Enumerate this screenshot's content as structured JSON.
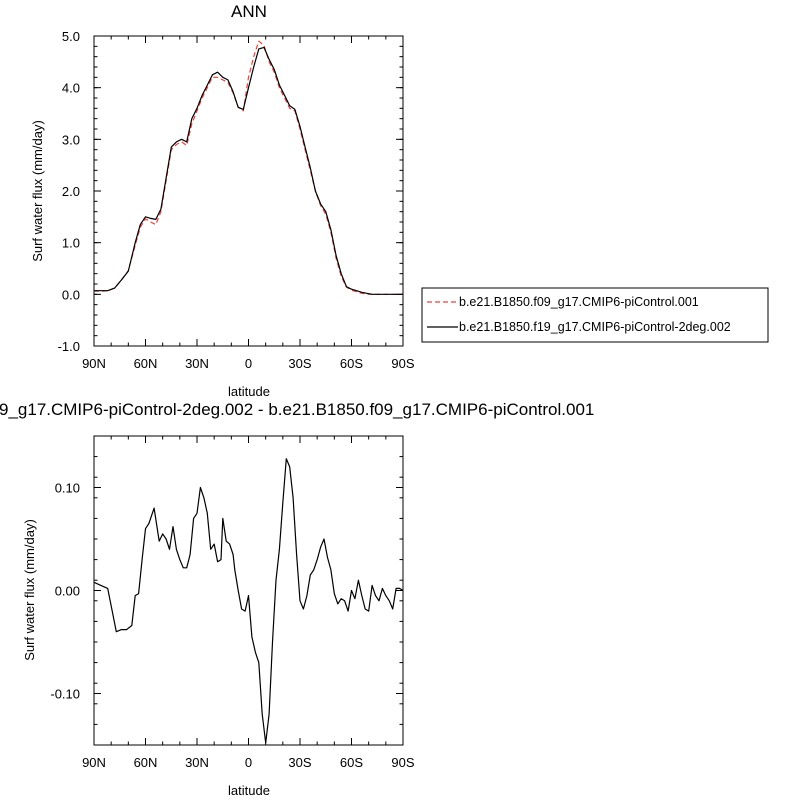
{
  "chart_data": [
    {
      "type": "line",
      "title": "ANN",
      "xlabel": "latitude",
      "ylabel": "Surf water flux (mm/day)",
      "xlim": [
        90,
        -90
      ],
      "ylim": [
        -1.0,
        5.0
      ],
      "x_ticks": [
        90,
        60,
        30,
        0,
        -30,
        -60,
        -90
      ],
      "x_tick_labels": [
        "90N",
        "60N",
        "30N",
        "0",
        "30S",
        "60S",
        "90S"
      ],
      "y_ticks": [
        -1.0,
        0.0,
        1.0,
        2.0,
        3.0,
        4.0,
        5.0
      ],
      "y_tick_labels": [
        "-1.0",
        "0.0",
        "1.0",
        "2.0",
        "3.0",
        "4.0",
        "5.0"
      ],
      "legend_position": "right",
      "series": [
        {
          "name": "b.e21.B1850.f09_g17.CMIP6-piControl.001",
          "color": "#e8413a",
          "dash": "dashed",
          "x": [
            90,
            86,
            82,
            78,
            74,
            70,
            66,
            63,
            60,
            57,
            54,
            51,
            48,
            45,
            42,
            39,
            36,
            33,
            30,
            27,
            24,
            21,
            18,
            15,
            12,
            9,
            6,
            3,
            0,
            -3,
            -6,
            -9,
            -12,
            -15,
            -18,
            -21,
            -24,
            -27,
            -30,
            -33,
            -36,
            -39,
            -42,
            -45,
            -48,
            -51,
            -54,
            -57,
            -60,
            -63,
            -66,
            -69,
            -72,
            -75,
            -78,
            -81,
            -84,
            -87,
            -90
          ],
          "y": [
            0.06,
            0.06,
            0.07,
            0.12,
            0.28,
            0.46,
            0.95,
            1.3,
            1.46,
            1.4,
            1.35,
            1.6,
            2.2,
            2.8,
            2.9,
            2.95,
            2.88,
            3.3,
            3.55,
            3.8,
            4.0,
            4.2,
            4.2,
            4.15,
            4.1,
            3.9,
            3.62,
            3.55,
            4.2,
            4.6,
            4.9,
            4.82,
            4.5,
            4.3,
            4.0,
            3.8,
            3.6,
            3.55,
            3.2,
            2.8,
            2.4,
            2.0,
            1.72,
            1.55,
            1.2,
            0.7,
            0.35,
            0.14,
            0.08,
            0.05,
            0.02,
            0.0,
            0.0,
            0.0,
            0.0,
            0.0,
            0.0,
            0.0,
            0.0
          ]
        },
        {
          "name": "b.e21.B1850.f19_g17.CMIP6-piControl-2deg.002",
          "color": "#000000",
          "dash": "solid",
          "x": [
            90,
            86,
            82,
            78,
            74,
            70,
            66,
            63,
            60,
            57,
            54,
            51,
            48,
            45,
            42,
            39,
            36,
            33,
            30,
            27,
            24,
            21,
            18,
            15,
            12,
            9,
            6,
            3,
            0,
            -3,
            -6,
            -9,
            -12,
            -15,
            -18,
            -21,
            -24,
            -27,
            -30,
            -33,
            -36,
            -39,
            -42,
            -45,
            -48,
            -51,
            -54,
            -57,
            -60,
            -63,
            -66,
            -69,
            -72,
            -75,
            -78,
            -81,
            -84,
            -87,
            -90
          ],
          "y": [
            0.07,
            0.07,
            0.07,
            0.12,
            0.28,
            0.45,
            1.0,
            1.35,
            1.5,
            1.47,
            1.45,
            1.65,
            2.25,
            2.85,
            2.95,
            3.0,
            2.95,
            3.4,
            3.6,
            3.85,
            4.05,
            4.25,
            4.3,
            4.2,
            4.15,
            3.92,
            3.62,
            3.58,
            4.0,
            4.4,
            4.75,
            4.78,
            4.55,
            4.35,
            4.05,
            3.85,
            3.65,
            3.58,
            3.25,
            2.85,
            2.45,
            2.0,
            1.75,
            1.6,
            1.25,
            0.75,
            0.4,
            0.15,
            0.1,
            0.07,
            0.04,
            0.02,
            0.0,
            0.0,
            0.0,
            0.0,
            0.0,
            0.0,
            0.0
          ]
        }
      ]
    },
    {
      "type": "line",
      "title": "9_g17.CMIP6-piControl-2deg.002 - b.e21.B1850.f09_g17.CMIP6-piControl.001",
      "xlabel": "latitude",
      "ylabel": "Surf water flux (mm/day)",
      "xlim": [
        90,
        -90
      ],
      "ylim": [
        -0.15,
        0.15
      ],
      "x_ticks": [
        90,
        60,
        30,
        0,
        -30,
        -60,
        -90
      ],
      "x_tick_labels": [
        "90N",
        "60N",
        "30N",
        "0",
        "30S",
        "60S",
        "90S"
      ],
      "y_ticks": [
        -0.1,
        0.0,
        0.1
      ],
      "y_tick_labels": [
        "-0.10",
        "0.00",
        "0.10"
      ],
      "series": [
        {
          "color": "#000000",
          "dash": "solid",
          "x": [
            90,
            86,
            82,
            80,
            77,
            74,
            71,
            68,
            66,
            64,
            62,
            60,
            58,
            55,
            52,
            50,
            48,
            46,
            44,
            42,
            40,
            38,
            36,
            34,
            32,
            30,
            28,
            26,
            24,
            22,
            20,
            18,
            16,
            15,
            13,
            11,
            9,
            8,
            6,
            4,
            2,
            0,
            -2,
            -4,
            -6,
            -8,
            -10,
            -12,
            -14,
            -16,
            -18,
            -20,
            -22,
            -24,
            -26,
            -28,
            -30,
            -32,
            -34,
            -36,
            -38,
            -40,
            -42,
            -44,
            -46,
            -48,
            -50,
            -52,
            -54,
            -56,
            -58,
            -60,
            -62,
            -64,
            -66,
            -68,
            -70,
            -72,
            -74,
            -76,
            -78,
            -80,
            -82,
            -84,
            -86,
            -88,
            -90
          ],
          "y": [
            0.008,
            0.005,
            0.002,
            -0.015,
            -0.04,
            -0.038,
            -0.038,
            -0.034,
            -0.005,
            -0.003,
            0.03,
            0.06,
            0.065,
            0.08,
            0.048,
            0.055,
            0.05,
            0.04,
            0.062,
            0.04,
            0.03,
            0.022,
            0.022,
            0.035,
            0.07,
            0.075,
            0.1,
            0.09,
            0.075,
            0.04,
            0.045,
            0.028,
            0.03,
            0.07,
            0.048,
            0.045,
            0.035,
            0.02,
            0.0,
            -0.018,
            -0.02,
            -0.005,
            -0.045,
            -0.06,
            -0.07,
            -0.12,
            -0.148,
            -0.12,
            -0.05,
            0.01,
            0.04,
            0.085,
            0.128,
            0.12,
            0.09,
            0.035,
            -0.01,
            -0.018,
            -0.005,
            0.015,
            0.02,
            0.03,
            0.042,
            0.05,
            0.032,
            0.02,
            -0.003,
            -0.013,
            -0.008,
            -0.01,
            -0.02,
            0.0,
            -0.008,
            0.01,
            -0.005,
            -0.018,
            -0.02,
            0.005,
            -0.005,
            -0.01,
            0.002,
            -0.005,
            -0.01,
            -0.018,
            0.002,
            0.002,
            0.0
          ]
        }
      ]
    }
  ],
  "legend": {
    "entries": [
      "b.e21.B1850.f09_g17.CMIP6-piControl.001",
      "b.e21.B1850.f19_g17.CMIP6-piControl-2deg.002"
    ]
  }
}
